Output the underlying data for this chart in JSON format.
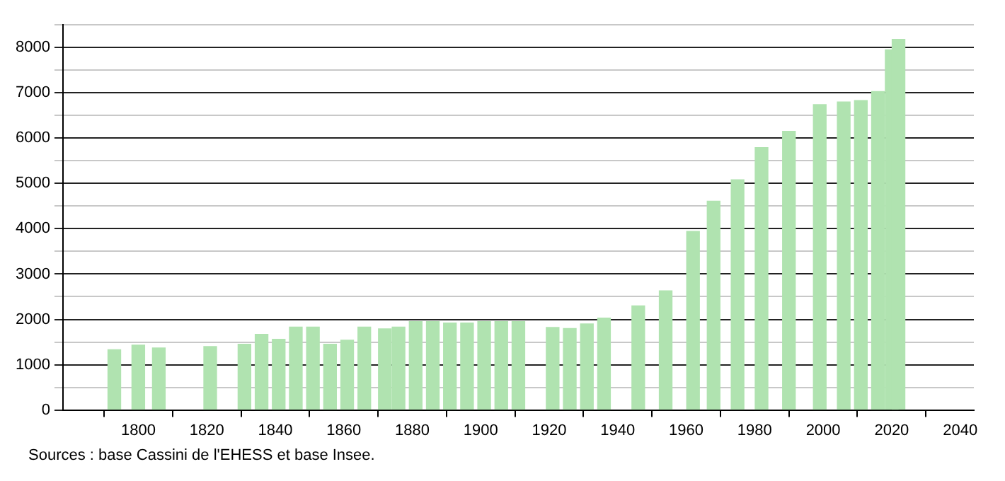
{
  "chart_data": {
    "type": "bar",
    "x": [
      1793,
      1800,
      1806,
      1821,
      1831,
      1836,
      1841,
      1846,
      1851,
      1856,
      1861,
      1866,
      1872,
      1876,
      1881,
      1886,
      1891,
      1896,
      1901,
      1906,
      1911,
      1921,
      1926,
      1931,
      1936,
      1946,
      1954,
      1962,
      1968,
      1975,
      1982,
      1990,
      1999,
      2006,
      2011,
      2016,
      2020,
      2022
    ],
    "values": [
      1330,
      1430,
      1370,
      1400,
      1450,
      1670,
      1560,
      1830,
      1830,
      1450,
      1540,
      1830,
      1790,
      1830,
      1950,
      1950,
      1920,
      1920,
      1950,
      1950,
      1950,
      1820,
      1800,
      1900,
      2030,
      2300,
      2630,
      3940,
      4610,
      5080,
      5790,
      6150,
      6740,
      6800,
      6830,
      7030,
      7950,
      8180
    ],
    "color": "#b0e3b0",
    "xlim": [
      1778,
      2044
    ],
    "xticks": [
      1800,
      1820,
      1840,
      1860,
      1880,
      1900,
      1920,
      1940,
      1960,
      1980,
      2000,
      2020,
      2040
    ],
    "ylim": [
      0,
      8500
    ],
    "yticks": [
      0,
      {
        "value": 500,
        "label": null
      },
      1000,
      {
        "value": 1500,
        "label": null
      },
      2000,
      {
        "value": 2500,
        "label": null
      },
      3000,
      {
        "value": 3500,
        "label": null
      },
      4000,
      {
        "value": 4500,
        "label": null
      },
      5000,
      {
        "value": 5500,
        "label": null
      },
      6000,
      {
        "value": 6500,
        "label": null
      },
      7000,
      {
        "value": 7500,
        "label": null
      },
      8000,
      {
        "value": 8500,
        "label": null
      }
    ],
    "grid": "y",
    "annotations": [
      "Sources : base Cassini de l'EHESS et base Insee."
    ]
  }
}
